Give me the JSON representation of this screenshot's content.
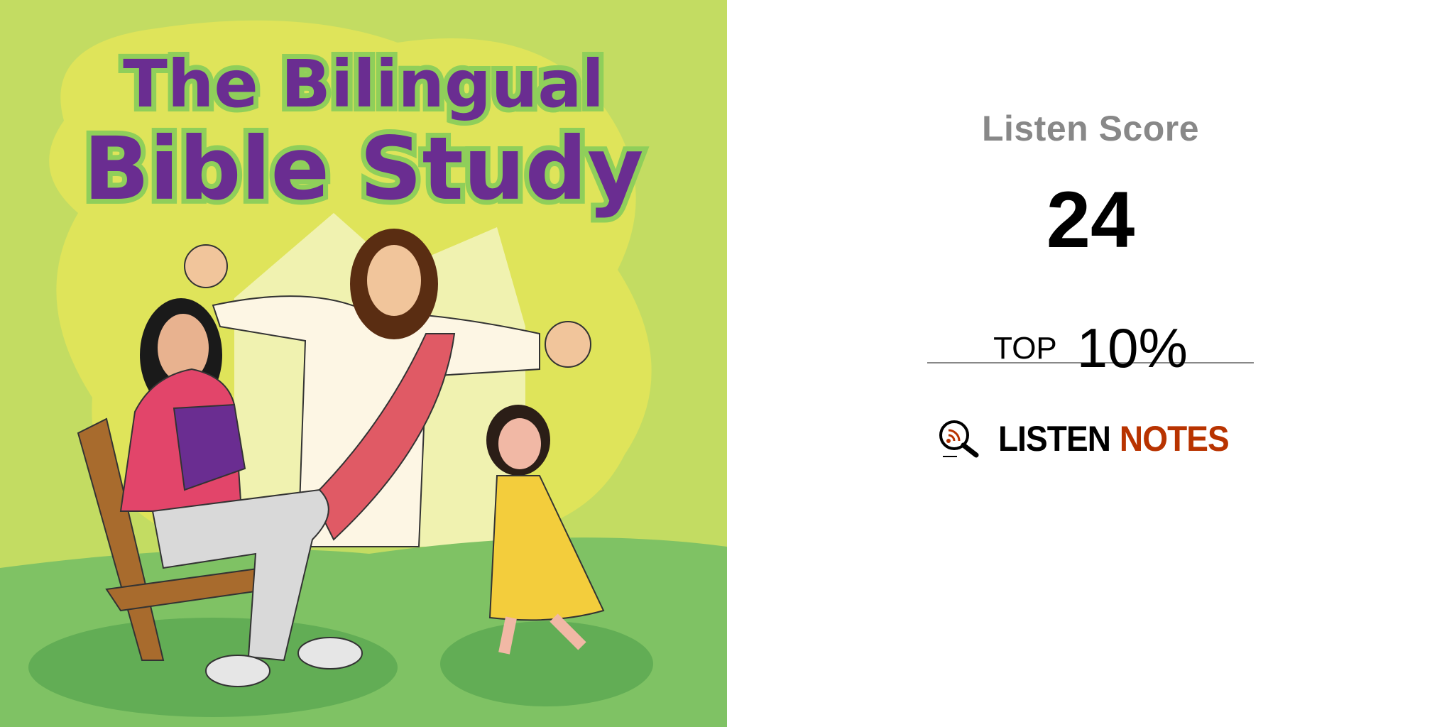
{
  "cover": {
    "title_line1": "The Bilingual",
    "title_line2": "Bible Study",
    "colors": {
      "background": "#c3dc62",
      "glow": "#dfe45a",
      "grass": "#7fc264",
      "title": "#6a2d91"
    }
  },
  "score": {
    "label": "Listen Score",
    "value": "24",
    "rank_prefix": "TOP",
    "rank_value": "10%"
  },
  "brand": {
    "icon": "magnifier-podcast-icon",
    "word1": "LISTEN",
    "word2": "NOTES",
    "colors": {
      "word1": "#000000",
      "word2": "#b83300"
    }
  }
}
